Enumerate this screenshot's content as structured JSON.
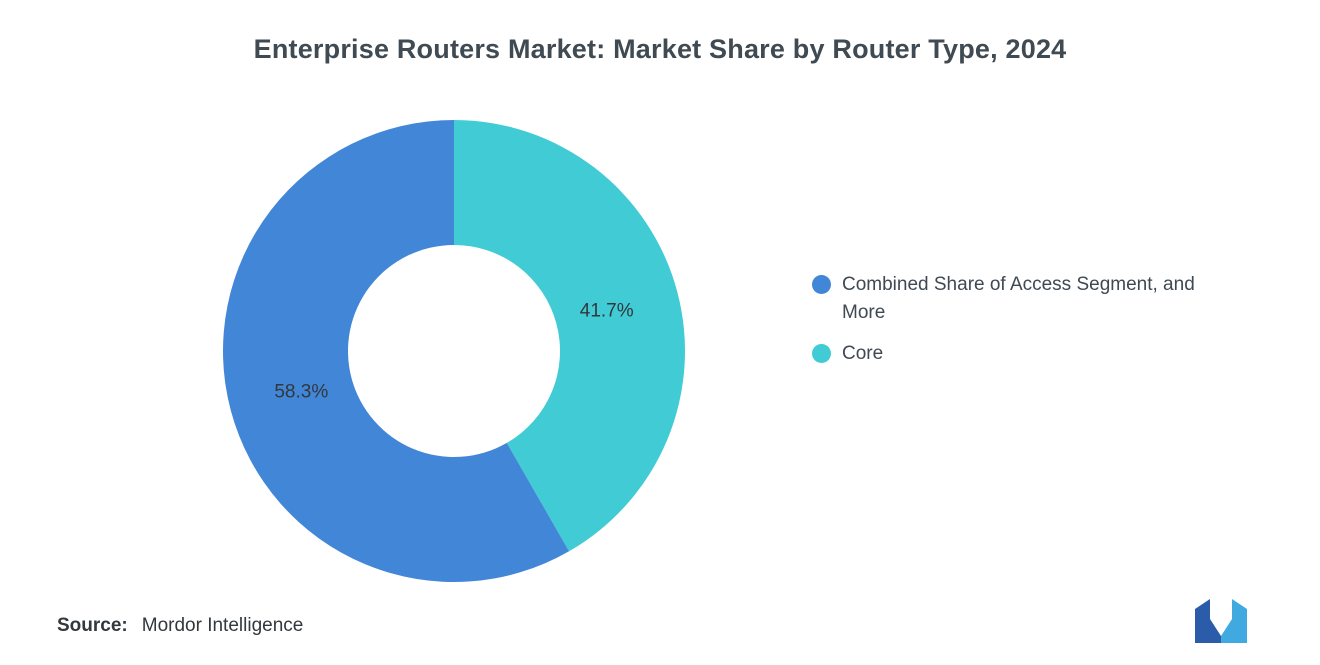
{
  "title": "Enterprise Routers Market: Market Share by Router Type, 2024",
  "source": {
    "label": "Source:",
    "value": "Mordor Intelligence"
  },
  "logo": {
    "name": "mordor-intelligence-logo",
    "color_left": "#2a5caa",
    "color_right": "#3fa9e0"
  },
  "chart_data": {
    "type": "pie",
    "subtype": "donut",
    "title": "Enterprise Routers Market: Market Share by Router Type, 2024",
    "legend_position": "right",
    "start_angle": "top",
    "direction": "first-series-counterclockwise",
    "inner_radius_ratio": 0.46,
    "segments": [
      {
        "label": "Combined Share of Access Segment, and More",
        "value": 58.3,
        "display": "58.3%",
        "color": "#4287d7"
      },
      {
        "label": "Core",
        "value": 41.7,
        "display": "41.7%",
        "color": "#41cbd4"
      }
    ]
  }
}
